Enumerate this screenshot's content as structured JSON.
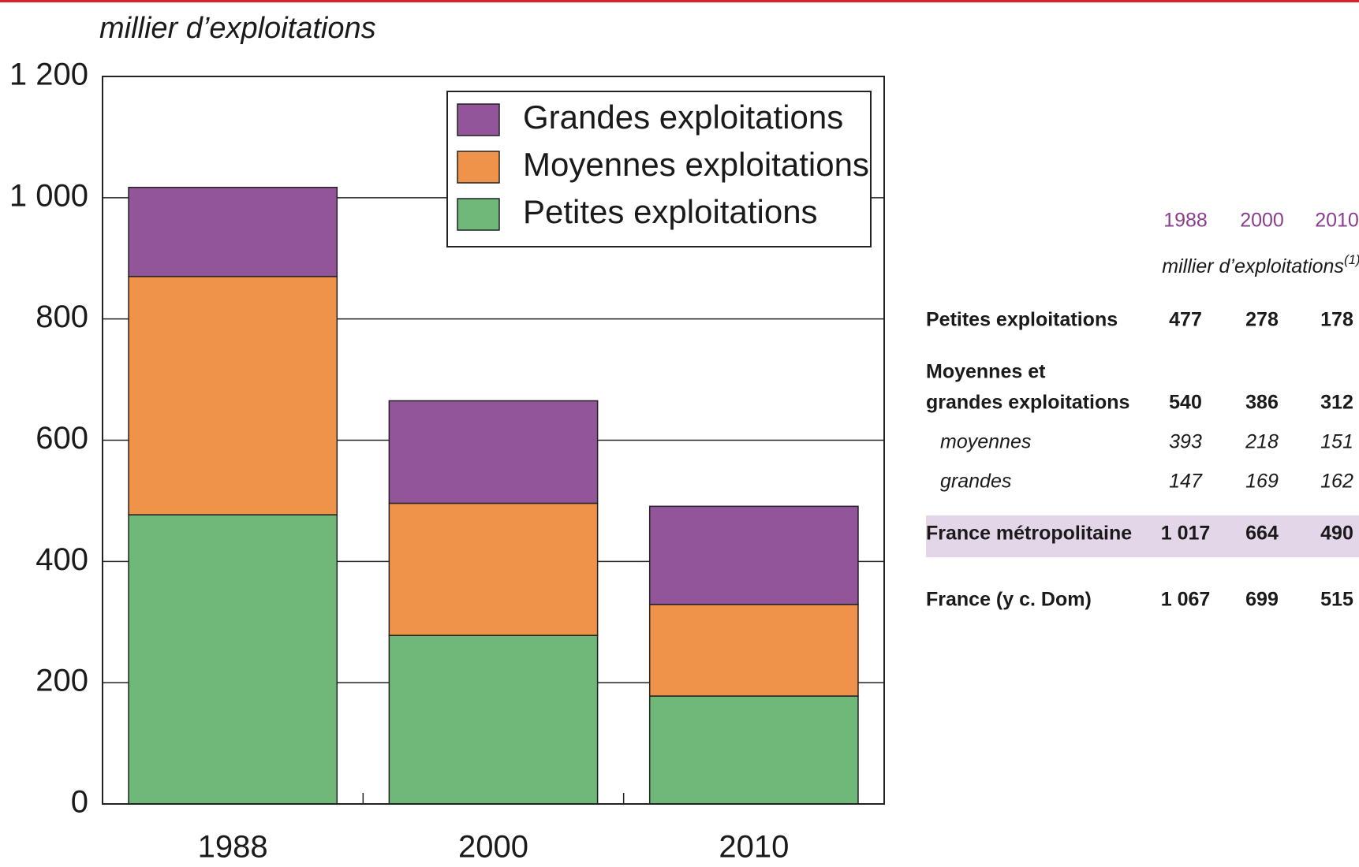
{
  "chart_data": {
    "type": "stacked_bar",
    "ylabel": "millier d’exploitations",
    "categories": [
      "1988",
      "2000",
      "2010"
    ],
    "series": [
      {
        "name": "Petites exploitations",
        "color": "#6fb879",
        "values": [
          477,
          278,
          178
        ]
      },
      {
        "name": "Moyennes exploitations",
        "color": "#f0934a",
        "values": [
          393,
          218,
          151
        ]
      },
      {
        "name": "Grandes exploitations",
        "color": "#93559a",
        "values": [
          147,
          169,
          162
        ]
      }
    ],
    "ylim": [
      0,
      1200
    ],
    "yticks": [
      0,
      200,
      400,
      600,
      800,
      {
        "value": 1000,
        "label": "1 000"
      },
      {
        "value": 1200,
        "label": "1 200"
      }
    ],
    "grid": true,
    "legend": "upper right"
  },
  "table": {
    "columns": [
      "1988",
      "2000",
      "2010"
    ],
    "unit": "millier d’exploitations",
    "footnote": "(1)",
    "rows": [
      {
        "label": [
          "Petites exploitations"
        ],
        "values": [
          "477",
          "278",
          "178"
        ]
      },
      {
        "label": [
          "Moyennes et",
          "grandes exploitations"
        ],
        "values": [
          "540",
          "386",
          "312"
        ]
      },
      {
        "label": [
          "moyennes"
        ],
        "values": [
          "393",
          "218",
          "151"
        ]
      },
      {
        "label": [
          "grandes"
        ],
        "values": [
          "147",
          "169",
          "162"
        ]
      },
      {
        "label": [
          "France métropolitaine"
        ],
        "values": [
          "1 017",
          "664",
          "490"
        ]
      },
      {
        "label": [
          "France (y c. Dom)"
        ],
        "values": [
          "1 067",
          "699",
          "515"
        ]
      }
    ]
  }
}
